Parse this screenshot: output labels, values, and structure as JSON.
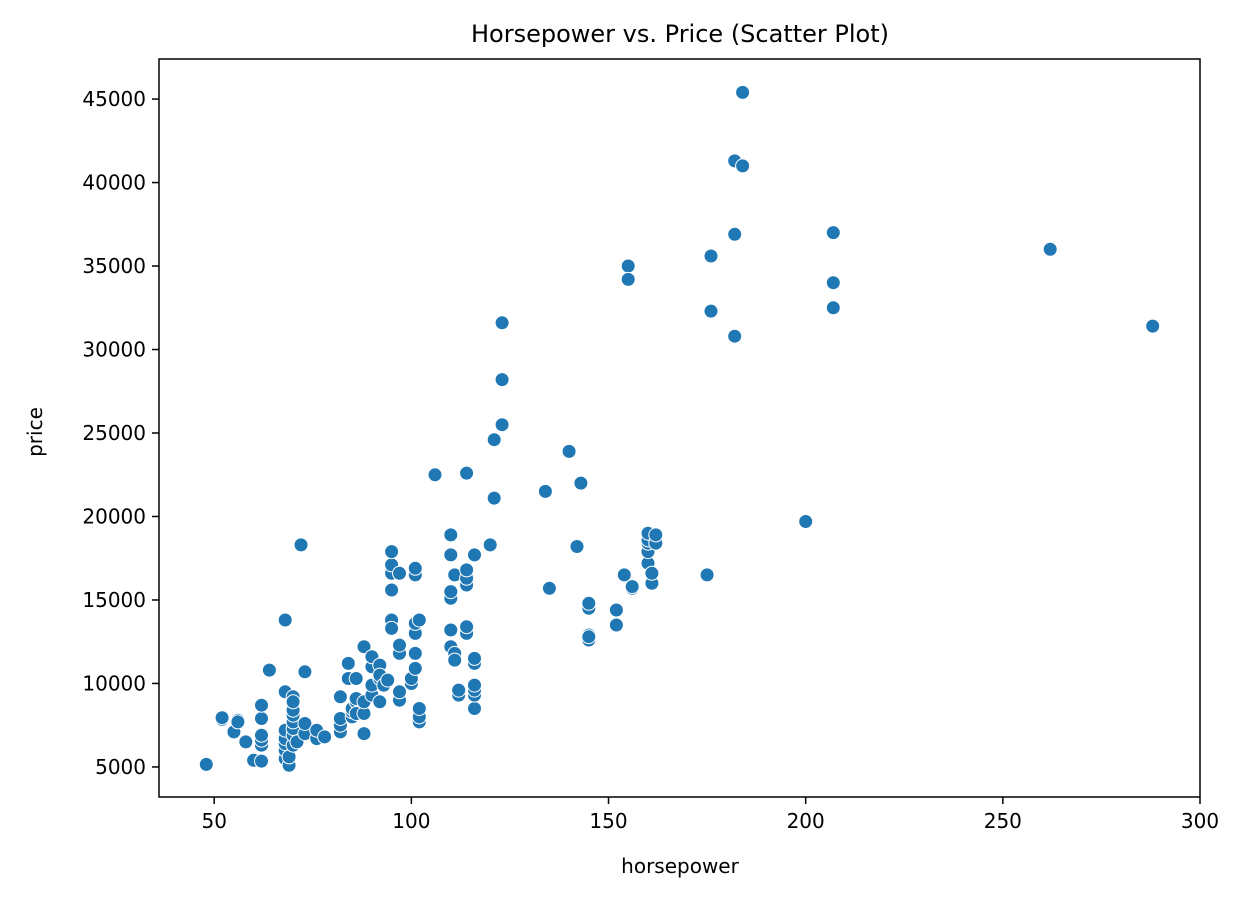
{
  "chart_data": {
    "type": "scatter",
    "title": "Horsepower vs. Price (Scatter Plot)",
    "xlabel": "horsepower",
    "ylabel": "price",
    "xlim": [
      36,
      300
    ],
    "ylim": [
      3200,
      47400
    ],
    "xticks": [
      50,
      100,
      150,
      200,
      250,
      300
    ],
    "yticks": [
      5000,
      10000,
      15000,
      20000,
      25000,
      30000,
      35000,
      40000,
      45000
    ],
    "grid": false,
    "legend": "none",
    "point_color": "#1f77b4",
    "points": [
      [
        48,
        5151
      ],
      [
        52,
        7850
      ],
      [
        52,
        7950
      ],
      [
        55,
        7100
      ],
      [
        56,
        7800
      ],
      [
        56,
        7700
      ],
      [
        58,
        6500
      ],
      [
        60,
        5400
      ],
      [
        62,
        5350
      ],
      [
        62,
        6300
      ],
      [
        62,
        6600
      ],
      [
        62,
        6900
      ],
      [
        62,
        7900
      ],
      [
        62,
        8700
      ],
      [
        64,
        10800
      ],
      [
        68,
        13800
      ],
      [
        68,
        9500
      ],
      [
        68,
        5500
      ],
      [
        68,
        6000
      ],
      [
        68,
        6400
      ],
      [
        68,
        6700
      ],
      [
        68,
        7200
      ],
      [
        69,
        5100
      ],
      [
        69,
        5600
      ],
      [
        70,
        6300
      ],
      [
        70,
        6900
      ],
      [
        70,
        7300
      ],
      [
        70,
        7700
      ],
      [
        70,
        8100
      ],
      [
        70,
        8400
      ],
      [
        70,
        9200
      ],
      [
        70,
        8900
      ],
      [
        71,
        6500
      ],
      [
        72,
        18300
      ],
      [
        73,
        10700
      ],
      [
        73,
        7000
      ],
      [
        73,
        7600
      ],
      [
        76,
        6700
      ],
      [
        76,
        7200
      ],
      [
        78,
        6800
      ],
      [
        82,
        7100
      ],
      [
        82,
        7500
      ],
      [
        82,
        7900
      ],
      [
        82,
        9200
      ],
      [
        84,
        11200
      ],
      [
        84,
        10300
      ],
      [
        85,
        8000
      ],
      [
        85,
        8300
      ],
      [
        85,
        8500
      ],
      [
        86,
        8900
      ],
      [
        86,
        9100
      ],
      [
        86,
        10300
      ],
      [
        86,
        8200
      ],
      [
        88,
        7000
      ],
      [
        88,
        8200
      ],
      [
        88,
        8900
      ],
      [
        88,
        12200
      ],
      [
        90,
        9300
      ],
      [
        90,
        9900
      ],
      [
        90,
        11000
      ],
      [
        90,
        11600
      ],
      [
        92,
        8900
      ],
      [
        92,
        10300
      ],
      [
        92,
        11100
      ],
      [
        92,
        10500
      ],
      [
        93,
        9900
      ],
      [
        94,
        10200
      ],
      [
        95,
        13800
      ],
      [
        95,
        13300
      ],
      [
        95,
        15600
      ],
      [
        95,
        16600
      ],
      [
        95,
        17100
      ],
      [
        95,
        17900
      ],
      [
        97,
        9000
      ],
      [
        97,
        9500
      ],
      [
        97,
        11800
      ],
      [
        97,
        12300
      ],
      [
        97,
        16600
      ],
      [
        100,
        10000
      ],
      [
        100,
        10300
      ],
      [
        101,
        10900
      ],
      [
        101,
        11800
      ],
      [
        101,
        13000
      ],
      [
        101,
        13600
      ],
      [
        101,
        16500
      ],
      [
        101,
        16900
      ],
      [
        102,
        7700
      ],
      [
        102,
        8000
      ],
      [
        102,
        8500
      ],
      [
        102,
        13800
      ],
      [
        106,
        22500
      ],
      [
        110,
        18900
      ],
      [
        110,
        17700
      ],
      [
        110,
        15100
      ],
      [
        110,
        15500
      ],
      [
        110,
        13200
      ],
      [
        110,
        12200
      ],
      [
        111,
        11800
      ],
      [
        111,
        11400
      ],
      [
        111,
        16500
      ],
      [
        112,
        9300
      ],
      [
        112,
        9600
      ],
      [
        114,
        13000
      ],
      [
        114,
        13400
      ],
      [
        114,
        15900
      ],
      [
        114,
        16300
      ],
      [
        114,
        16800
      ],
      [
        114,
        22600
      ],
      [
        116,
        8500
      ],
      [
        116,
        9300
      ],
      [
        116,
        9600
      ],
      [
        116,
        9900
      ],
      [
        116,
        11200
      ],
      [
        116,
        11500
      ],
      [
        116,
        17700
      ],
      [
        120,
        18300
      ],
      [
        121,
        21100
      ],
      [
        121,
        24600
      ],
      [
        123,
        31600
      ],
      [
        123,
        28200
      ],
      [
        123,
        25500
      ],
      [
        134,
        21500
      ],
      [
        135,
        15700
      ],
      [
        140,
        23900
      ],
      [
        142,
        18200
      ],
      [
        143,
        22000
      ],
      [
        145,
        12600
      ],
      [
        145,
        12900
      ],
      [
        145,
        12800
      ],
      [
        145,
        14500
      ],
      [
        145,
        14800
      ],
      [
        152,
        13500
      ],
      [
        152,
        14400
      ],
      [
        154,
        16500
      ],
      [
        155,
        35000
      ],
      [
        155,
        34200
      ],
      [
        156,
        15700
      ],
      [
        156,
        15800
      ],
      [
        160,
        17200
      ],
      [
        160,
        17900
      ],
      [
        160,
        18400
      ],
      [
        160,
        18600
      ],
      [
        160,
        19000
      ],
      [
        161,
        16000
      ],
      [
        161,
        16600
      ],
      [
        162,
        18400
      ],
      [
        162,
        18900
      ],
      [
        175,
        16500
      ],
      [
        176,
        35600
      ],
      [
        176,
        32300
      ],
      [
        182,
        41300
      ],
      [
        182,
        36900
      ],
      [
        182,
        30800
      ],
      [
        184,
        45400
      ],
      [
        184,
        41000
      ],
      [
        200,
        19700
      ],
      [
        207,
        37000
      ],
      [
        207,
        34000
      ],
      [
        207,
        32500
      ],
      [
        262,
        36000
      ],
      [
        288,
        31400
      ]
    ]
  }
}
